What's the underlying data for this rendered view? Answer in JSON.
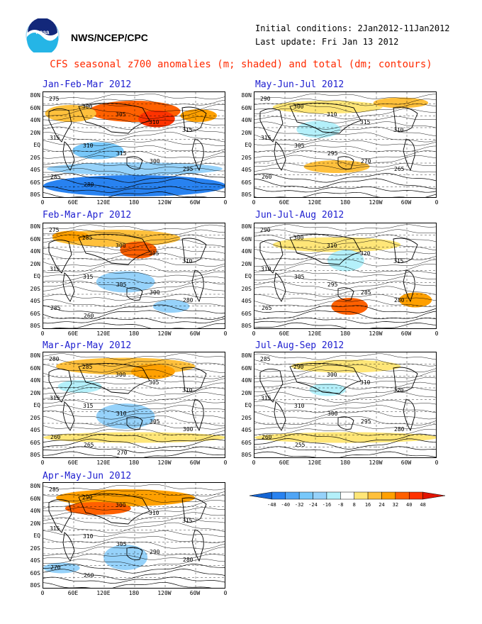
{
  "header": {
    "org": "NWS/NCEP/CPC",
    "initial_conditions": "Initial conditions: 2Jan2012-11Jan2012",
    "last_update": "Last update: Fri Jan 13 2012",
    "title": "CFS seasonal z700 anomalies (m; shaded) and total (dm; contours)"
  },
  "lat_labels": [
    "80N",
    "60N",
    "40N",
    "20N",
    "EQ",
    "20S",
    "40S",
    "60S",
    "80S"
  ],
  "lon_labels": [
    "0",
    "60E",
    "120E",
    "180",
    "120W",
    "60W",
    "0"
  ],
  "panels": [
    {
      "label": "Jan-Feb-Mar 2012",
      "contour_labels": [
        "275",
        "300",
        "305",
        "310",
        "315",
        "315",
        "310",
        "315",
        "300",
        "295",
        "285",
        "280"
      ]
    },
    {
      "label": "May-Jun-Jul 2012",
      "contour_labels": [
        "290",
        "300",
        "310",
        "315",
        "310",
        "315",
        "305",
        "295",
        "270",
        "265",
        "260"
      ]
    },
    {
      "label": "Feb-Mar-Apr 2012",
      "contour_labels": [
        "275",
        "285",
        "300",
        "305",
        "310",
        "315",
        "315",
        "305",
        "300",
        "280",
        "285",
        "260"
      ]
    },
    {
      "label": "Jun-Jul-Aug 2012",
      "contour_labels": [
        "290",
        "300",
        "310",
        "320",
        "315",
        "310",
        "305",
        "295",
        "285",
        "280",
        "265"
      ]
    },
    {
      "label": "Mar-Apr-May 2012",
      "contour_labels": [
        "280",
        "285",
        "300",
        "305",
        "310",
        "315",
        "315",
        "310",
        "305",
        "300",
        "260",
        "265",
        "270"
      ]
    },
    {
      "label": "Jul-Aug-Sep 2012",
      "contour_labels": [
        "285",
        "290",
        "300",
        "310",
        "320",
        "315",
        "310",
        "300",
        "295",
        "280",
        "260",
        "255"
      ]
    },
    {
      "label": "Apr-May-Jun 2012",
      "contour_labels": [
        "285",
        "290",
        "300",
        "310",
        "315",
        "315",
        "310",
        "305",
        "290",
        "280",
        "270",
        "260"
      ]
    }
  ],
  "colorbar": {
    "ticks": [
      "-48",
      "-40",
      "-32",
      "-24",
      "-16",
      "-8",
      "8",
      "16",
      "24",
      "32",
      "40",
      "48"
    ],
    "colors": [
      "#1464d2",
      "#2882f0",
      "#50a5f5",
      "#78c8fa",
      "#96d2fa",
      "#b4f0fa",
      "#ffffff",
      "#ffe678",
      "#ffc03c",
      "#ffa000",
      "#ff6000",
      "#ff3200",
      "#e11400"
    ]
  }
}
